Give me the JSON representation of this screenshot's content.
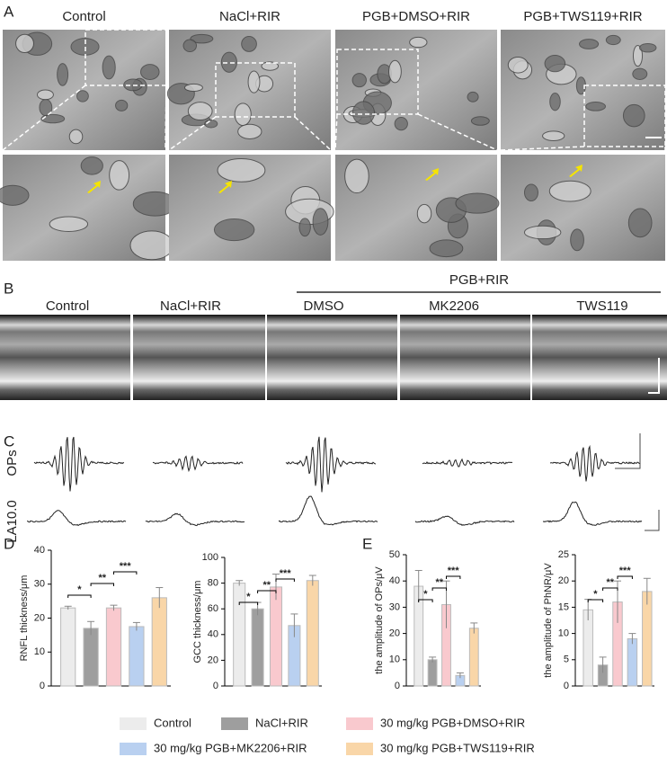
{
  "panel_labels": [
    "A",
    "B",
    "C",
    "D",
    "E"
  ],
  "panel_a": {
    "headers": [
      "Control",
      "NaCl+RIR",
      "PGB+DMSO+RIR",
      "PGB+TWS119+RIR"
    ]
  },
  "panel_b": {
    "group": "PGB+RIR",
    "headers": [
      "Control",
      "NaCl+RIR",
      "DMSO",
      "MK2206",
      "TWS119"
    ]
  },
  "panel_c": {
    "rows": [
      "OPs",
      "LA10.0"
    ]
  },
  "chart_data": [
    {
      "type": "bar",
      "ylabel": "RNFL thickness/μm",
      "values": [
        23,
        17,
        23,
        17.5,
        26
      ],
      "errors": [
        0.5,
        2,
        0.8,
        1.2,
        3
      ],
      "ylim": [
        0,
        40
      ],
      "yticks": [
        0,
        10,
        20,
        30,
        40
      ],
      "annotations": [
        "*",
        "**",
        "***"
      ]
    },
    {
      "type": "bar",
      "ylabel": "GCC thickness/μm",
      "values": [
        80,
        60,
        77,
        47,
        82
      ],
      "errors": [
        2,
        5,
        10,
        9,
        4
      ],
      "ylim": [
        0,
        100
      ],
      "yticks": [
        0,
        20,
        40,
        60,
        80,
        100
      ],
      "annotations": [
        "*",
        "**",
        "***"
      ]
    },
    {
      "type": "bar",
      "ylabel": "the amplitude of OPs/μV",
      "values": [
        38,
        10,
        31,
        4,
        22
      ],
      "errors": [
        6,
        1,
        9,
        1,
        2
      ],
      "ylim": [
        0,
        50
      ],
      "yticks": [
        0,
        10,
        20,
        30,
        40,
        50
      ],
      "annotations": [
        "*",
        "**",
        "***"
      ]
    },
    {
      "type": "bar",
      "ylabel": "the amplitude of PhNR/μV",
      "values": [
        14.5,
        4,
        16,
        9,
        18
      ],
      "errors": [
        2,
        1.5,
        4,
        1,
        2.5
      ],
      "ylim": [
        0,
        25
      ],
      "yticks": [
        0,
        5,
        10,
        15,
        20,
        25
      ],
      "annotations": [
        "*",
        "**",
        "***"
      ]
    }
  ],
  "legend": [
    {
      "name": "Control",
      "color": "#ececec"
    },
    {
      "name": "NaCl+RIR",
      "color": "#9e9e9e"
    },
    {
      "name": "30 mg/kg PGB+DMSO+RIR",
      "color": "#f9c9ce"
    },
    {
      "name": "30 mg/kg PGB+MK2206+RIR",
      "color": "#b9d0f0"
    },
    {
      "name": "30 mg/kg PGB+TWS119+RIR",
      "color": "#f9d6a8"
    }
  ]
}
